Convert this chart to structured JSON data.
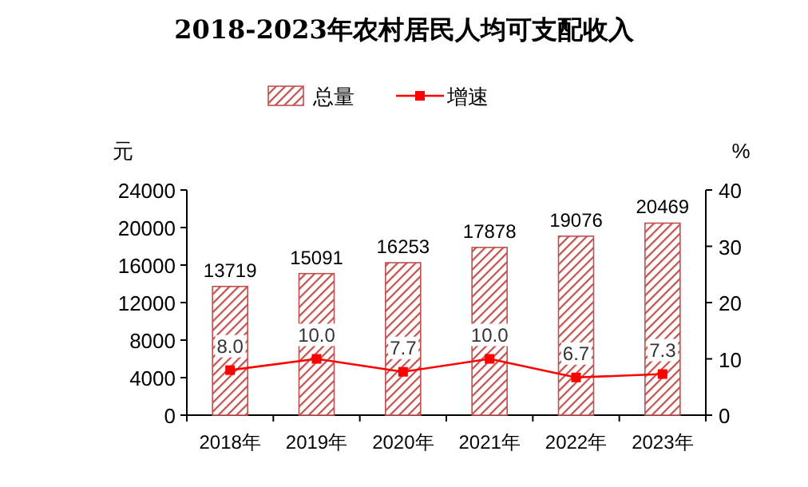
{
  "chart_data": {
    "type": "bar",
    "title": "2018-2023年农村居民人均可支配收入",
    "ylabel": "元",
    "y2label": "%",
    "categories": [
      "2018年",
      "2019年",
      "2020年",
      "2021年",
      "2022年",
      "2023年"
    ],
    "series": [
      {
        "name": "总量",
        "color": "#c0504d",
        "values": [
          13719,
          15091,
          16253,
          17878,
          19076,
          20469
        ],
        "value_labels": [
          "13719",
          "15091",
          "16253",
          "17878",
          "19076",
          "20469"
        ]
      },
      {
        "name": "增速",
        "type": "line",
        "axis": "y2",
        "color": "#ff0000",
        "marker": "square",
        "values": [
          8.0,
          10.0,
          7.7,
          10.0,
          6.7,
          7.3
        ],
        "value_labels": [
          "8.0",
          "10.0",
          "7.7",
          "10.0",
          "6.7",
          "7.3"
        ]
      }
    ],
    "ylim": [
      0,
      24000
    ],
    "yticks": [
      0,
      4000,
      8000,
      12000,
      16000,
      20000,
      24000
    ],
    "y2lim": [
      0,
      40
    ],
    "y2ticks": [
      0,
      10,
      20,
      30,
      40
    ],
    "legend": "top",
    "grid": false
  }
}
